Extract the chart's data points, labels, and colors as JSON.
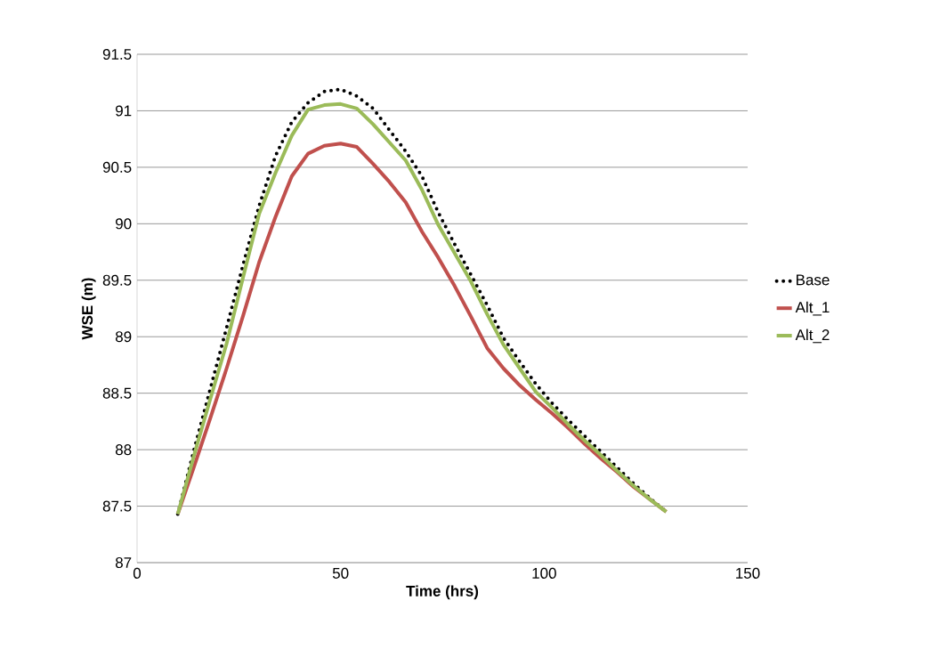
{
  "chart_data": {
    "type": "line",
    "xlabel": "Time (hrs)",
    "ylabel": "WSE (m)",
    "x": [
      10,
      14,
      18,
      22,
      26,
      30,
      34,
      38,
      42,
      46,
      50,
      54,
      58,
      62,
      66,
      70,
      74,
      78,
      82,
      86,
      90,
      94,
      98,
      102,
      106,
      110,
      114,
      118,
      122,
      126,
      130
    ],
    "series": [
      {
        "name": "Base",
        "color": "#000000",
        "line_style": "dotted",
        "values": [
          87.43,
          88.0,
          88.54,
          89.08,
          89.63,
          90.16,
          90.6,
          90.9,
          91.07,
          91.17,
          91.19,
          91.13,
          91.02,
          90.83,
          90.64,
          90.42,
          90.1,
          89.82,
          89.55,
          89.28,
          88.99,
          88.78,
          88.58,
          88.41,
          88.26,
          88.12,
          87.98,
          87.84,
          87.7,
          87.57,
          87.45
        ]
      },
      {
        "name": "Alt_1",
        "color": "#c0504d",
        "line_style": "solid",
        "values": [
          87.43,
          87.85,
          88.28,
          88.72,
          89.18,
          89.66,
          90.06,
          90.42,
          90.62,
          90.69,
          90.71,
          90.68,
          90.53,
          90.37,
          90.19,
          89.93,
          89.7,
          89.45,
          89.18,
          88.9,
          88.72,
          88.57,
          88.44,
          88.32,
          88.19,
          88.05,
          87.92,
          87.8,
          87.67,
          87.56,
          87.45
        ]
      },
      {
        "name": "Alt_2",
        "color": "#9bbb59",
        "line_style": "solid",
        "values": [
          87.43,
          87.95,
          88.45,
          88.94,
          89.52,
          90.09,
          90.45,
          90.78,
          91.01,
          91.05,
          91.06,
          91.02,
          90.88,
          90.72,
          90.56,
          90.3,
          89.99,
          89.74,
          89.49,
          89.2,
          88.93,
          88.72,
          88.51,
          88.37,
          88.22,
          88.08,
          87.95,
          87.81,
          87.68,
          87.56,
          87.45
        ]
      }
    ],
    "xlim": [
      0,
      150
    ],
    "xticks": [
      0,
      50,
      100,
      150
    ],
    "ylim": [
      87,
      91.5
    ],
    "yticks": [
      87,
      87.5,
      88,
      88.5,
      89,
      89.5,
      90,
      90.5,
      91,
      91.5
    ],
    "grid": "y",
    "legend": "right",
    "marker": "none"
  }
}
